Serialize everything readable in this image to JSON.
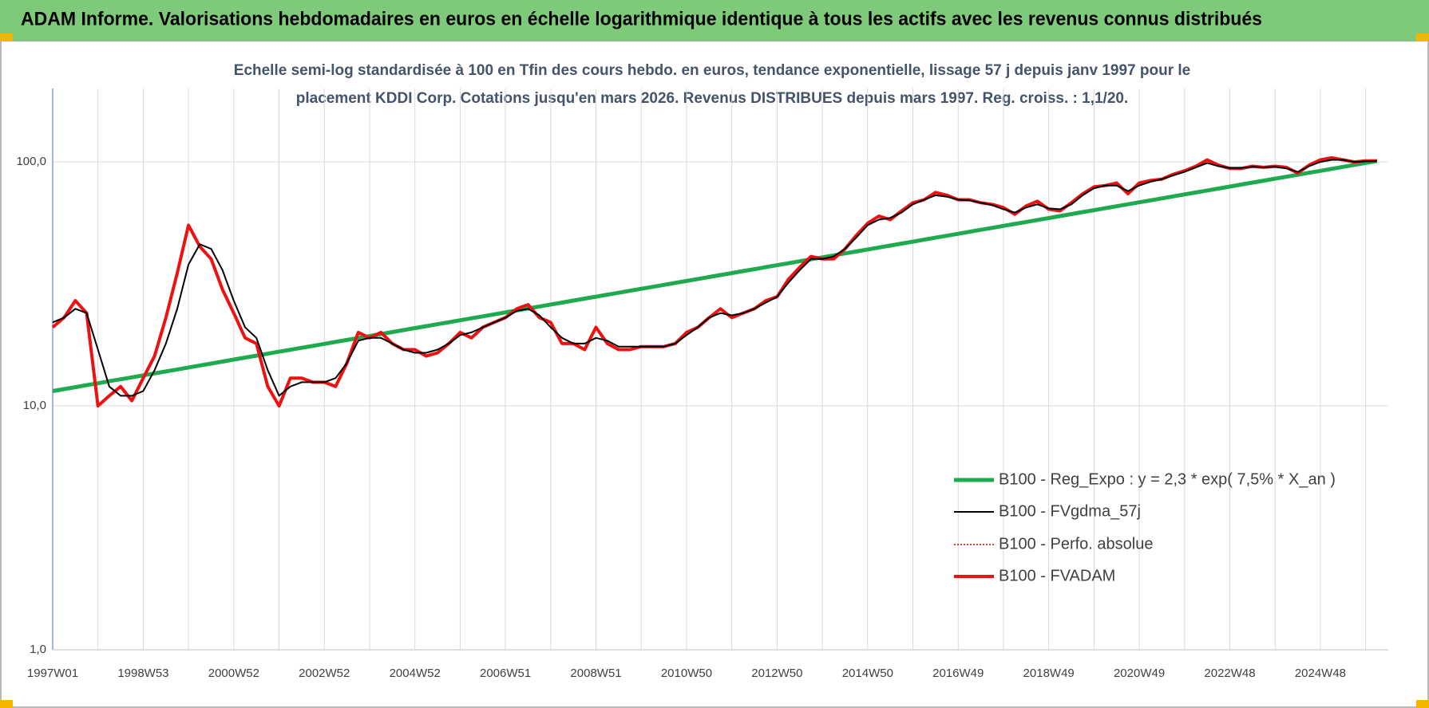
{
  "chart_data": {
    "type": "line",
    "title": "ADAM Informe. Valorisations hebdomadaires en euros en échelle logarithmique identique à tous les actifs avec les revenus connus distribués",
    "subtitle": [
      "Echelle semi-log standardisée à 100 en Tfin des cours hebdo. en euros, tendance exponentielle, lissage 57 j depuis janv 1997 pour le",
      "placement KDDI Corp. Cotations jusqu'en mars 2026. Revenus DISTRIBUES depuis mars 1997. Reg. croiss. : 1,1/20."
    ],
    "log_scale": true,
    "grid": true,
    "legend": "lower right",
    "ylim": [
      1,
      200
    ],
    "yticks": [
      {
        "value": 1,
        "label": "1,0"
      },
      {
        "value": 10,
        "label": "10,0"
      },
      {
        "value": 100,
        "label": "100,0"
      }
    ],
    "categories": [
      "1997W01",
      null,
      null,
      null,
      null,
      null,
      null,
      null,
      "1998W53",
      null,
      null,
      null,
      null,
      null,
      null,
      null,
      "2000W52",
      null,
      null,
      null,
      null,
      null,
      null,
      null,
      "2002W52",
      null,
      null,
      null,
      null,
      null,
      null,
      null,
      "2004W52",
      null,
      null,
      null,
      null,
      null,
      null,
      null,
      "2006W51",
      null,
      null,
      null,
      null,
      null,
      null,
      null,
      "2008W51",
      null,
      null,
      null,
      null,
      null,
      null,
      null,
      "2010W50",
      null,
      null,
      null,
      null,
      null,
      null,
      null,
      "2012W50",
      null,
      null,
      null,
      null,
      null,
      null,
      null,
      "2014W50",
      null,
      null,
      null,
      null,
      null,
      null,
      null,
      "2016W49",
      null,
      null,
      null,
      null,
      null,
      null,
      null,
      "2018W49",
      null,
      null,
      null,
      null,
      null,
      null,
      null,
      "2020W49",
      null,
      null,
      null,
      null,
      null,
      null,
      null,
      "2022W48",
      null,
      null,
      null,
      null,
      null,
      null,
      null,
      "2024W48",
      null,
      null,
      null,
      null,
      null
    ],
    "series": [
      {
        "name": "B100 - Reg_Expo : y = 2,3 * exp( 7,5% *  X_an )",
        "color": "#1faa4f",
        "width": 5,
        "dash": false,
        "values": [
          11.5,
          11.72,
          11.93,
          12.16,
          12.38,
          12.62,
          12.85,
          13.09,
          13.34,
          13.59,
          13.84,
          14.1,
          14.37,
          14.64,
          14.91,
          15.19,
          15.48,
          15.77,
          16.06,
          16.36,
          16.67,
          16.98,
          17.3,
          17.62,
          17.95,
          18.29,
          18.63,
          18.98,
          19.34,
          19.7,
          20.07,
          20.45,
          20.83,
          21.22,
          21.62,
          22.02,
          22.44,
          22.86,
          23.28,
          23.72,
          24.16,
          24.62,
          25.08,
          25.55,
          26.03,
          26.51,
          27.01,
          27.52,
          28.03,
          28.56,
          29.09,
          29.64,
          30.19,
          30.76,
          31.33,
          31.92,
          32.52,
          33.13,
          33.75,
          34.38,
          35.03,
          35.68,
          36.35,
          37.03,
          37.73,
          38.43,
          39.15,
          39.89,
          40.63,
          41.39,
          42.17,
          42.96,
          43.76,
          44.58,
          45.42,
          46.27,
          47.13,
          48.02,
          48.92,
          49.83,
          50.77,
          51.72,
          52.69,
          53.67,
          54.68,
          55.7,
          56.75,
          57.81,
          58.89,
          60,
          61.12,
          62.27,
          63.43,
          64.62,
          65.83,
          67.06,
          68.32,
          69.6,
          70.9,
          72.23,
          73.59,
          74.96,
          76.37,
          77.8,
          79.26,
          80.74,
          82.26,
          83.8,
          85.37,
          86.97,
          88.6,
          90.26,
          91.95,
          93.68,
          95.43,
          97.22,
          99.04,
          100.9
        ]
      },
      {
        "name": "B100 - FVgdma_57j",
        "color": "#000000",
        "width": 2,
        "dash": false,
        "values": [
          22,
          23,
          25,
          24,
          17,
          12,
          11,
          11,
          11.5,
          14,
          18,
          25,
          38,
          46,
          44,
          36,
          27,
          21,
          19,
          14,
          11,
          12,
          12.5,
          12.5,
          12.5,
          13,
          15,
          18.5,
          19,
          19,
          18,
          17,
          16.5,
          16.5,
          17,
          18,
          19.5,
          20,
          21,
          22,
          23,
          24.5,
          25,
          23.5,
          21,
          19,
          18,
          18,
          19,
          18.5,
          17.5,
          17.5,
          17.5,
          17.5,
          17.5,
          18,
          19.5,
          21,
          23,
          24,
          23.5,
          24,
          25,
          26.5,
          28,
          32,
          36,
          40,
          40,
          41,
          44,
          49,
          55,
          58,
          59,
          62,
          67,
          70,
          73,
          72,
          70,
          69.5,
          68,
          66.5,
          64,
          62,
          65,
          67,
          64.5,
          64,
          67,
          73,
          78,
          80,
          80,
          76,
          80,
          83,
          85,
          88,
          91,
          95,
          99,
          96,
          94.5,
          94.5,
          95.5,
          95,
          95.5,
          94,
          91,
          96,
          100,
          102,
          102,
          100,
          100.5,
          101
        ]
      },
      {
        "name": "B100 - Perfo. absolue",
        "color": "#c00000",
        "width": 1.5,
        "dash": true,
        "values": [
          21,
          23,
          27,
          24,
          10,
          11,
          12,
          10.5,
          13,
          16,
          23,
          35,
          55,
          45,
          40,
          30,
          24,
          19,
          18,
          12,
          10,
          13,
          13,
          12.5,
          12.5,
          12,
          15,
          20,
          19,
          20,
          18,
          17,
          17,
          16,
          16.5,
          18,
          20,
          19,
          21,
          22,
          23,
          25,
          26,
          23,
          22,
          18,
          18,
          17,
          21,
          18,
          17,
          17,
          17.5,
          17.5,
          17.5,
          18,
          20,
          21,
          23,
          25,
          23,
          24,
          25,
          27,
          28,
          33,
          37,
          41,
          40,
          40,
          44,
          50,
          56,
          60,
          58,
          63,
          68,
          70,
          75,
          73,
          70,
          70,
          68,
          67,
          65,
          61,
          66,
          69,
          64,
          63,
          68,
          74,
          79,
          80,
          82,
          74,
          82,
          84,
          85,
          89,
          92,
          96,
          102,
          97,
          94,
          94,
          96,
          95,
          96,
          95,
          90,
          97,
          102,
          104,
          102,
          100,
          101,
          101
        ]
      },
      {
        "name": "B100 - FVADAM",
        "color": "#ee1111",
        "width": 4,
        "dash": false,
        "values": [
          21,
          23,
          27,
          24,
          10,
          11,
          12,
          10.5,
          13,
          16,
          23,
          35,
          55,
          45,
          40,
          30,
          24,
          19,
          18,
          12,
          10,
          13,
          13,
          12.5,
          12.5,
          12,
          15,
          20,
          19,
          20,
          18,
          17,
          17,
          16,
          16.5,
          18,
          20,
          19,
          21,
          22,
          23,
          25,
          26,
          23,
          22,
          18,
          18,
          17,
          21,
          18,
          17,
          17,
          17.5,
          17.5,
          17.5,
          18,
          20,
          21,
          23,
          25,
          23,
          24,
          25,
          27,
          28,
          33,
          37,
          41,
          40,
          40,
          44,
          50,
          56,
          60,
          58,
          63,
          68,
          70,
          75,
          73,
          70,
          70,
          68,
          67,
          65,
          61,
          66,
          69,
          64,
          63,
          68,
          74,
          79,
          80,
          82,
          74,
          82,
          84,
          85,
          89,
          92,
          96,
          102,
          97,
          94,
          94,
          96,
          95,
          96,
          95,
          90,
          97,
          102,
          104,
          102,
          100,
          101,
          101
        ]
      }
    ]
  }
}
